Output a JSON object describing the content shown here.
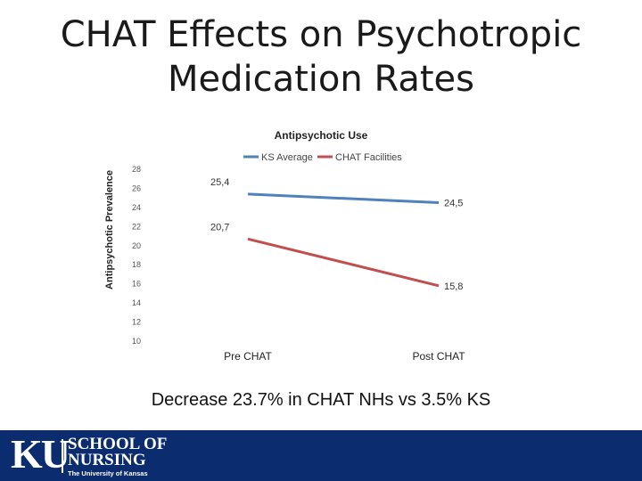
{
  "slide": {
    "title_line1": "CHAT Effects on Psychotropic",
    "title_line2": "Medication Rates",
    "subtitle": "Decrease 23.7% in CHAT NHs vs 3.5% KS"
  },
  "footer": {
    "logo_ku": "KU",
    "logo_line1": "SCHOOL OF",
    "logo_line2": "NURSING",
    "logo_line3": "The University of Kansas"
  },
  "colors": {
    "ks": "#4f81bd",
    "chat": "#c0504d",
    "footer_bg": "#0b2c6e"
  },
  "chart_data": {
    "type": "line",
    "title": "Antipsychotic Use",
    "ylabel": "Antipsychotic Prevalence",
    "xlabel": "",
    "categories": [
      "Pre CHAT",
      "Post CHAT"
    ],
    "series": [
      {
        "name": "KS Average",
        "values": [
          25.4,
          24.5
        ],
        "labels": [
          "25,4",
          "24,5"
        ]
      },
      {
        "name": "CHAT Facilities",
        "values": [
          20.7,
          15.8
        ],
        "labels": [
          "20,7",
          "15,8"
        ]
      }
    ],
    "ylim": [
      10,
      28
    ],
    "yticks": [
      "10",
      "12",
      "14",
      "16",
      "18",
      "20",
      "22",
      "24",
      "26",
      "28"
    ],
    "legend": "top",
    "grid": false
  }
}
